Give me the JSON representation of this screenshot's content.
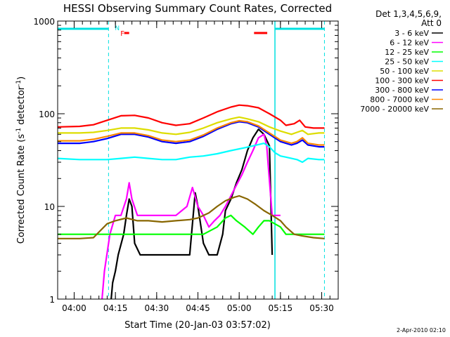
{
  "chart_data": {
    "type": "line",
    "title": "HESSI Observing Summary Count Rates, Corrected",
    "xlabel": "Start Time (20-Jan-03 03:57:02)",
    "ylabel_main": "Corrected Count Rate (s",
    "ylabel_sup1": "-1",
    "ylabel_mid": " detector",
    "ylabel_sup2": "-1",
    "ylabel_end": ")",
    "y_scale": "log",
    "ylim": [
      1,
      1000
    ],
    "xlim_min": [
      -3,
      99
    ],
    "x_ticks": [
      {
        "t": 3,
        "label": "04:00"
      },
      {
        "t": 18,
        "label": "04:15"
      },
      {
        "t": 33,
        "label": "04:30"
      },
      {
        "t": 48,
        "label": "04:45"
      },
      {
        "t": 63,
        "label": "05:00"
      },
      {
        "t": 78,
        "label": "05:15"
      },
      {
        "t": 93,
        "label": "05:30"
      }
    ],
    "y_ticks": [
      {
        "v": 1,
        "label": "1"
      },
      {
        "v": 10,
        "label": "10"
      },
      {
        "v": 100,
        "label": "100"
      },
      {
        "v": 1000,
        "label": "1000"
      }
    ],
    "legend": {
      "placement": "right",
      "header1": "Det 1,3,4,5,6,9,",
      "header2": "Att 0"
    },
    "series": [
      {
        "name": "3 - 6 keV",
        "color": "#000000",
        "points": [
          [
            16,
            0.7
          ],
          [
            17,
            1.5
          ],
          [
            18,
            2
          ],
          [
            19,
            3
          ],
          [
            21,
            5
          ],
          [
            22,
            8
          ],
          [
            23,
            12
          ],
          [
            24,
            10
          ],
          [
            25,
            4
          ],
          [
            27,
            3
          ],
          [
            30,
            3
          ],
          [
            33,
            3
          ],
          [
            36,
            3
          ],
          [
            39,
            3
          ],
          [
            42,
            3
          ],
          [
            45,
            3
          ],
          [
            47,
            14
          ],
          [
            48,
            10
          ],
          [
            50,
            4
          ],
          [
            52,
            3
          ],
          [
            55,
            3
          ],
          [
            57,
            5
          ],
          [
            58,
            9
          ],
          [
            60,
            12
          ],
          [
            62,
            18
          ],
          [
            64,
            25
          ],
          [
            66,
            40
          ],
          [
            68,
            55
          ],
          [
            70,
            68
          ],
          [
            72,
            60
          ],
          [
            74,
            45
          ],
          [
            75,
            3
          ]
        ]
      },
      {
        "name": "6 - 12 keV",
        "color": "#ff00ff",
        "points": [
          [
            13,
            0.9
          ],
          [
            14,
            2
          ],
          [
            16,
            5
          ],
          [
            18,
            8
          ],
          [
            20,
            8
          ],
          [
            22,
            12
          ],
          [
            23,
            18
          ],
          [
            24,
            12
          ],
          [
            26,
            8
          ],
          [
            30,
            8
          ],
          [
            35,
            8
          ],
          [
            40,
            8
          ],
          [
            44,
            10
          ],
          [
            46,
            16
          ],
          [
            48,
            10
          ],
          [
            50,
            8
          ],
          [
            52,
            6
          ],
          [
            54,
            7
          ],
          [
            56,
            8
          ],
          [
            58,
            10
          ],
          [
            60,
            13
          ],
          [
            62,
            17
          ],
          [
            64,
            22
          ],
          [
            66,
            30
          ],
          [
            68,
            40
          ],
          [
            70,
            55
          ],
          [
            72,
            60
          ],
          [
            73,
            45
          ],
          [
            75,
            8
          ],
          [
            76,
            8
          ],
          [
            78,
            8
          ]
        ]
      },
      {
        "name": "12 - 25 keV",
        "color": "#00ff00",
        "points": [
          [
            -3,
            5
          ],
          [
            5,
            5
          ],
          [
            10,
            5
          ],
          [
            15,
            5
          ],
          [
            20,
            5
          ],
          [
            30,
            5
          ],
          [
            40,
            5
          ],
          [
            50,
            5
          ],
          [
            55,
            6
          ],
          [
            58,
            7.5
          ],
          [
            60,
            8
          ],
          [
            62,
            7
          ],
          [
            65,
            6
          ],
          [
            68,
            5
          ],
          [
            70,
            6
          ],
          [
            72,
            7
          ],
          [
            74,
            7
          ],
          [
            78,
            6
          ],
          [
            80,
            5
          ],
          [
            85,
            5
          ],
          [
            90,
            5
          ],
          [
            94,
            5
          ]
        ]
      },
      {
        "name": "25 - 50 keV",
        "color": "#00ffff",
        "points": [
          [
            -3,
            33
          ],
          [
            5,
            32
          ],
          [
            10,
            32
          ],
          [
            15,
            32
          ],
          [
            20,
            33
          ],
          [
            25,
            34
          ],
          [
            30,
            33
          ],
          [
            35,
            32
          ],
          [
            40,
            32
          ],
          [
            45,
            34
          ],
          [
            50,
            35
          ],
          [
            55,
            37
          ],
          [
            60,
            40
          ],
          [
            65,
            43
          ],
          [
            68,
            45
          ],
          [
            72,
            48
          ],
          [
            74,
            44
          ],
          [
            76,
            38
          ],
          [
            78,
            35
          ],
          [
            80,
            34
          ],
          [
            84,
            32
          ],
          [
            86,
            30
          ],
          [
            88,
            33
          ],
          [
            92,
            32
          ],
          [
            94,
            32
          ]
        ]
      },
      {
        "name": "50 - 100 keV",
        "color": "#dddd00",
        "points": [
          [
            -3,
            62
          ],
          [
            5,
            62
          ],
          [
            10,
            63
          ],
          [
            15,
            66
          ],
          [
            20,
            70
          ],
          [
            25,
            70
          ],
          [
            30,
            67
          ],
          [
            35,
            62
          ],
          [
            40,
            60
          ],
          [
            45,
            63
          ],
          [
            50,
            70
          ],
          [
            55,
            80
          ],
          [
            60,
            88
          ],
          [
            63,
            92
          ],
          [
            66,
            88
          ],
          [
            70,
            82
          ],
          [
            74,
            72
          ],
          [
            78,
            65
          ],
          [
            82,
            60
          ],
          [
            84,
            63
          ],
          [
            86,
            66
          ],
          [
            88,
            60
          ],
          [
            92,
            62
          ],
          [
            94,
            62
          ]
        ]
      },
      {
        "name": "100 - 300 keV",
        "color": "#ff0000",
        "points": [
          [
            -3,
            72
          ],
          [
            5,
            73
          ],
          [
            10,
            76
          ],
          [
            15,
            85
          ],
          [
            20,
            95
          ],
          [
            25,
            96
          ],
          [
            30,
            90
          ],
          [
            35,
            80
          ],
          [
            40,
            75
          ],
          [
            45,
            78
          ],
          [
            50,
            90
          ],
          [
            55,
            105
          ],
          [
            60,
            118
          ],
          [
            63,
            124
          ],
          [
            66,
            122
          ],
          [
            70,
            116
          ],
          [
            74,
            100
          ],
          [
            78,
            85
          ],
          [
            80,
            75
          ],
          [
            83,
            78
          ],
          [
            85,
            85
          ],
          [
            87,
            72
          ],
          [
            90,
            70
          ],
          [
            94,
            70
          ]
        ]
      },
      {
        "name": "300 - 800 keV",
        "color": "#0000ff",
        "points": [
          [
            -3,
            48
          ],
          [
            5,
            48
          ],
          [
            10,
            50
          ],
          [
            15,
            54
          ],
          [
            20,
            60
          ],
          [
            25,
            60
          ],
          [
            30,
            56
          ],
          [
            35,
            50
          ],
          [
            40,
            48
          ],
          [
            45,
            50
          ],
          [
            50,
            57
          ],
          [
            55,
            68
          ],
          [
            60,
            78
          ],
          [
            63,
            82
          ],
          [
            66,
            80
          ],
          [
            70,
            72
          ],
          [
            74,
            60
          ],
          [
            78,
            50
          ],
          [
            82,
            46
          ],
          [
            84,
            48
          ],
          [
            86,
            52
          ],
          [
            88,
            46
          ],
          [
            92,
            44
          ],
          [
            94,
            44
          ]
        ]
      },
      {
        "name": "800 - 7000 keV",
        "color": "#ff8800",
        "points": [
          [
            -3,
            51
          ],
          [
            5,
            51
          ],
          [
            10,
            53
          ],
          [
            15,
            57
          ],
          [
            20,
            62
          ],
          [
            25,
            62
          ],
          [
            30,
            58
          ],
          [
            35,
            52
          ],
          [
            40,
            50
          ],
          [
            45,
            52
          ],
          [
            50,
            59
          ],
          [
            55,
            70
          ],
          [
            60,
            80
          ],
          [
            63,
            84
          ],
          [
            66,
            82
          ],
          [
            70,
            74
          ],
          [
            74,
            62
          ],
          [
            78,
            52
          ],
          [
            82,
            48
          ],
          [
            84,
            50
          ],
          [
            86,
            55
          ],
          [
            88,
            48
          ],
          [
            92,
            46
          ],
          [
            94,
            46
          ]
        ]
      },
      {
        "name": "7000 - 20000 keV",
        "color": "#886600",
        "points": [
          [
            -3,
            4.5
          ],
          [
            5,
            4.5
          ],
          [
            10,
            4.6
          ],
          [
            15,
            6.5
          ],
          [
            18,
            7
          ],
          [
            22,
            7.5
          ],
          [
            26,
            7
          ],
          [
            30,
            7
          ],
          [
            35,
            6.8
          ],
          [
            40,
            7
          ],
          [
            45,
            7.2
          ],
          [
            48,
            7.5
          ],
          [
            52,
            8.5
          ],
          [
            55,
            10
          ],
          [
            58,
            11.5
          ],
          [
            61,
            12.5
          ],
          [
            63,
            13
          ],
          [
            66,
            12
          ],
          [
            69,
            10.5
          ],
          [
            72,
            9
          ],
          [
            75,
            8
          ],
          [
            78,
            7
          ],
          [
            80,
            6
          ],
          [
            83,
            5
          ],
          [
            86,
            4.8
          ],
          [
            90,
            4.6
          ],
          [
            94,
            4.5
          ]
        ]
      }
    ],
    "status_bars": {
      "color": "#00e0e0",
      "segments": [
        [
          -3,
          15.5
        ],
        [
          76,
          94
        ]
      ],
      "n_label": "N",
      "n_at": 17.8,
      "f_label": "F",
      "f_color": "#ff0000",
      "f_at": 19.8,
      "red_segments": [
        [
          21.2,
          23
        ],
        [
          68.4,
          73.2
        ]
      ]
    },
    "vlines": {
      "dashed": [
        15.5,
        94
      ],
      "solid": [
        76
      ]
    }
  },
  "footer": {
    "date_stamp": "2-Apr-2010 02:10"
  }
}
